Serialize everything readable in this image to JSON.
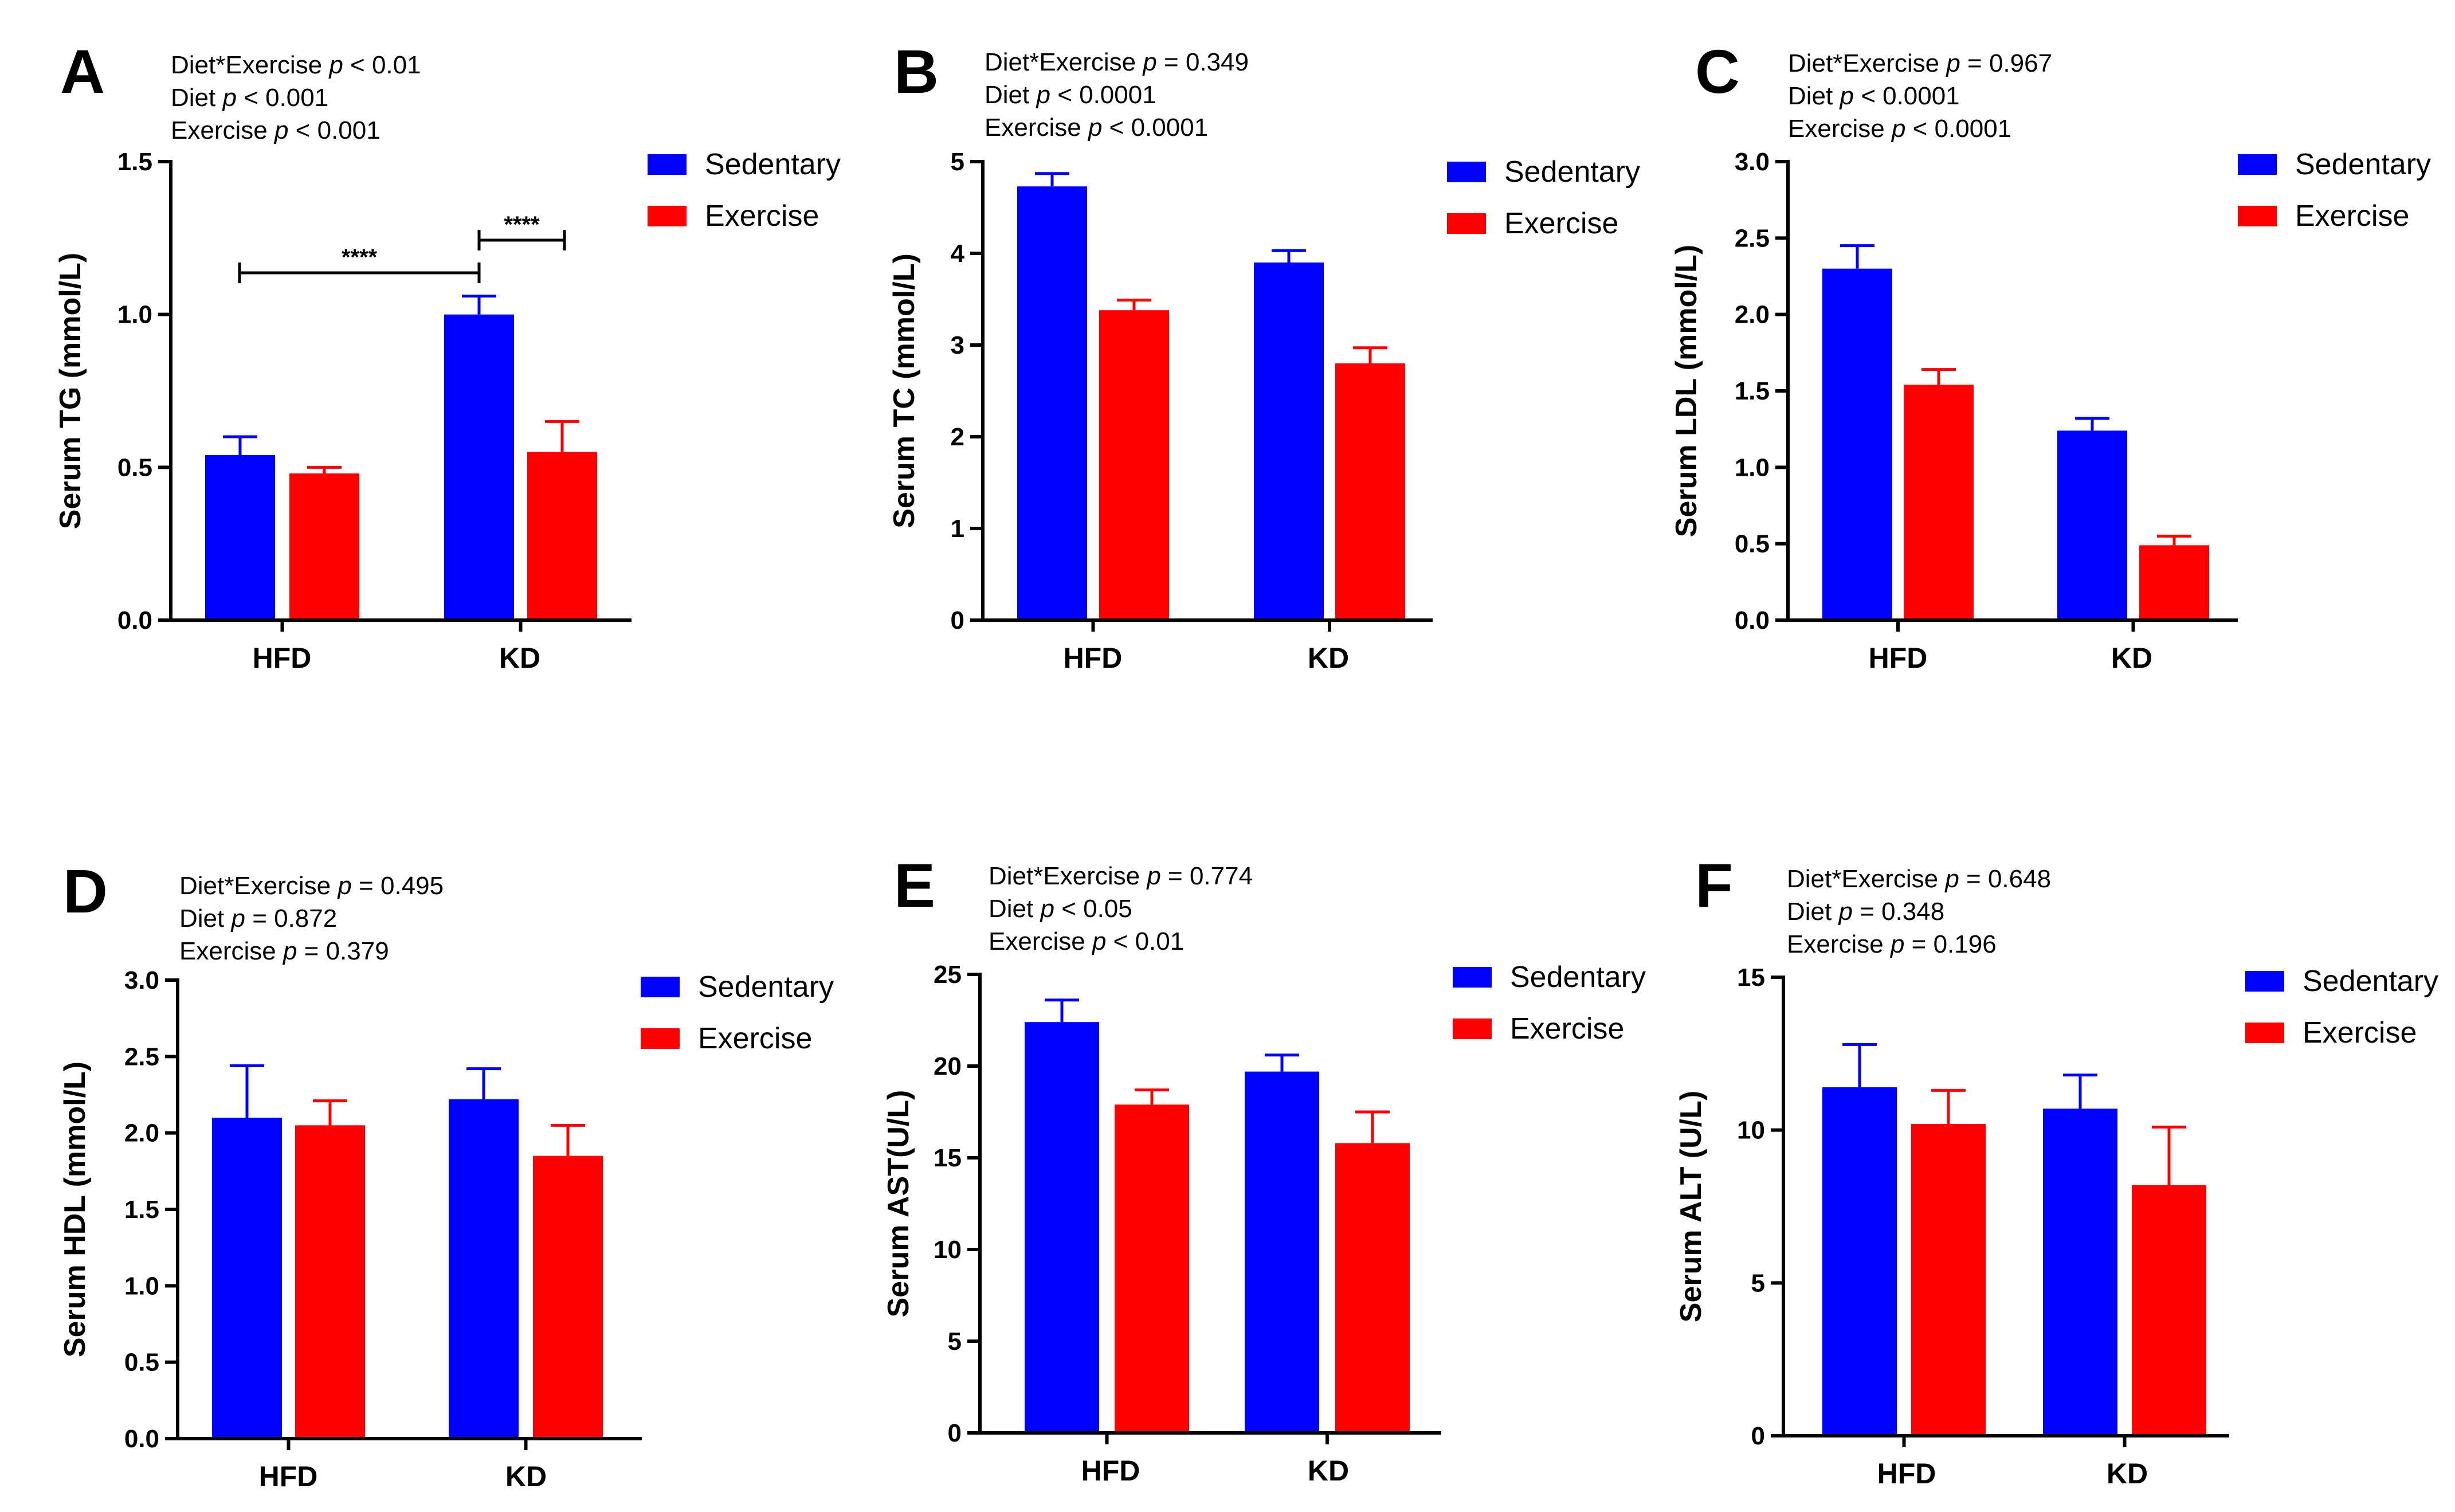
{
  "figure": {
    "colors": {
      "sedentary": "#0000ff",
      "exercise": "#ff0000",
      "axis": "#000000"
    },
    "legend": {
      "sedentary": "Sedentary",
      "exercise": "Exercise"
    }
  },
  "chart_data": [
    {
      "panel": "A",
      "type": "bar",
      "ylabel": "Serum TG (mmol/L)",
      "ylim": [
        0,
        1.5
      ],
      "yticks": [
        "0.0",
        "0.5",
        "1.0",
        "1.5"
      ],
      "categories": [
        "HFD",
        "KD"
      ],
      "stats": [
        {
          "label": "Diet*Exercise",
          "p": "p",
          "value": " < 0.01"
        },
        {
          "label": "Diet",
          "p": "p",
          "value": " < 0.001"
        },
        {
          "label": "Exercise",
          "p": "p",
          "value": " < 0.001"
        }
      ],
      "series": [
        {
          "name": "Sedentary",
          "values": [
            0.54,
            1.0
          ],
          "errors": [
            0.06,
            0.06
          ]
        },
        {
          "name": "Exercise",
          "values": [
            0.48,
            0.55
          ],
          "errors": [
            0.02,
            0.1
          ]
        }
      ],
      "significance": [
        {
          "label": "****",
          "from": "HFD-Sedentary",
          "to": "KD-Sedentary"
        },
        {
          "label": "****",
          "from": "KD-Sedentary",
          "to": "KD-Exercise"
        }
      ]
    },
    {
      "panel": "B",
      "type": "bar",
      "ylabel": "Serum TC (mmol/L)",
      "ylim": [
        0,
        5
      ],
      "yticks": [
        "0",
        "1",
        "2",
        "3",
        "4",
        "5"
      ],
      "categories": [
        "HFD",
        "KD"
      ],
      "stats": [
        {
          "label": "Diet*Exercise",
          "p": "p",
          "value": " = 0.349"
        },
        {
          "label": "Diet",
          "p": "p",
          "value": " < 0.0001"
        },
        {
          "label": "Exercise",
          "p": "p",
          "value": " < 0.0001"
        }
      ],
      "series": [
        {
          "name": "Sedentary",
          "values": [
            4.73,
            3.9
          ],
          "errors": [
            0.14,
            0.13
          ]
        },
        {
          "name": "Exercise",
          "values": [
            3.38,
            2.8
          ],
          "errors": [
            0.11,
            0.17
          ]
        }
      ]
    },
    {
      "panel": "C",
      "type": "bar",
      "ylabel": "Serum LDL (mmol/L)",
      "ylim": [
        0,
        3
      ],
      "yticks": [
        "0.0",
        "0.5",
        "1.0",
        "1.5",
        "2.0",
        "2.5",
        "3.0"
      ],
      "categories": [
        "HFD",
        "KD"
      ],
      "stats": [
        {
          "label": "Diet*Exercise",
          "p": "p",
          "value": " = 0.967"
        },
        {
          "label": "Diet",
          "p": "p",
          "value": " < 0.0001"
        },
        {
          "label": "Exercise",
          "p": "p",
          "value": " < 0.0001"
        }
      ],
      "series": [
        {
          "name": "Sedentary",
          "values": [
            2.3,
            1.24
          ],
          "errors": [
            0.15,
            0.08
          ]
        },
        {
          "name": "Exercise",
          "values": [
            1.54,
            0.49
          ],
          "errors": [
            0.1,
            0.06
          ]
        }
      ]
    },
    {
      "panel": "D",
      "type": "bar",
      "ylabel": "Serum HDL (mmol/L)",
      "ylim": [
        0,
        3
      ],
      "yticks": [
        "0.0",
        "0.5",
        "1.0",
        "1.5",
        "2.0",
        "2.5",
        "3.0"
      ],
      "categories": [
        "HFD",
        "KD"
      ],
      "stats": [
        {
          "label": "Diet*Exercise",
          "p": "p",
          "value": " = 0.495"
        },
        {
          "label": "Diet",
          "p": "p",
          "value": " = 0.872"
        },
        {
          "label": "Exercise",
          "p": "p",
          "value": " = 0.379"
        }
      ],
      "series": [
        {
          "name": "Sedentary",
          "values": [
            2.1,
            2.22
          ],
          "errors": [
            0.34,
            0.2
          ]
        },
        {
          "name": "Exercise",
          "values": [
            2.05,
            1.85
          ],
          "errors": [
            0.16,
            0.2
          ]
        }
      ]
    },
    {
      "panel": "E",
      "type": "bar",
      "ylabel": "Serum AST(U/L)",
      "ylim": [
        0,
        25
      ],
      "yticks": [
        "0",
        "5",
        "10",
        "15",
        "20",
        "25"
      ],
      "categories": [
        "HFD",
        "KD"
      ],
      "stats": [
        {
          "label": "Diet*Exercise",
          "p": "p",
          "value": " = 0.774"
        },
        {
          "label": "Diet",
          "p": "p",
          "value": " < 0.05"
        },
        {
          "label": "Exercise",
          "p": "p",
          "value": " < 0.01"
        }
      ],
      "series": [
        {
          "name": "Sedentary",
          "values": [
            22.4,
            19.7
          ],
          "errors": [
            1.2,
            0.9
          ]
        },
        {
          "name": "Exercise",
          "values": [
            17.9,
            15.8
          ],
          "errors": [
            0.8,
            1.7
          ]
        }
      ]
    },
    {
      "panel": "F",
      "type": "bar",
      "ylabel": "Serum ALT (U/L)",
      "ylim": [
        0,
        15
      ],
      "yticks": [
        "0",
        "5",
        "10",
        "15"
      ],
      "categories": [
        "HFD",
        "KD"
      ],
      "stats": [
        {
          "label": "Diet*Exercise",
          "p": "p",
          "value": " = 0.648"
        },
        {
          "label": "Diet",
          "p": "p",
          "value": " = 0.348"
        },
        {
          "label": "Exercise",
          "p": "p",
          "value": " = 0.196"
        }
      ],
      "series": [
        {
          "name": "Sedentary",
          "values": [
            11.4,
            10.7
          ],
          "errors": [
            1.4,
            1.1
          ]
        },
        {
          "name": "Exercise",
          "values": [
            10.2,
            8.2
          ],
          "errors": [
            1.1,
            1.9
          ]
        }
      ]
    }
  ]
}
